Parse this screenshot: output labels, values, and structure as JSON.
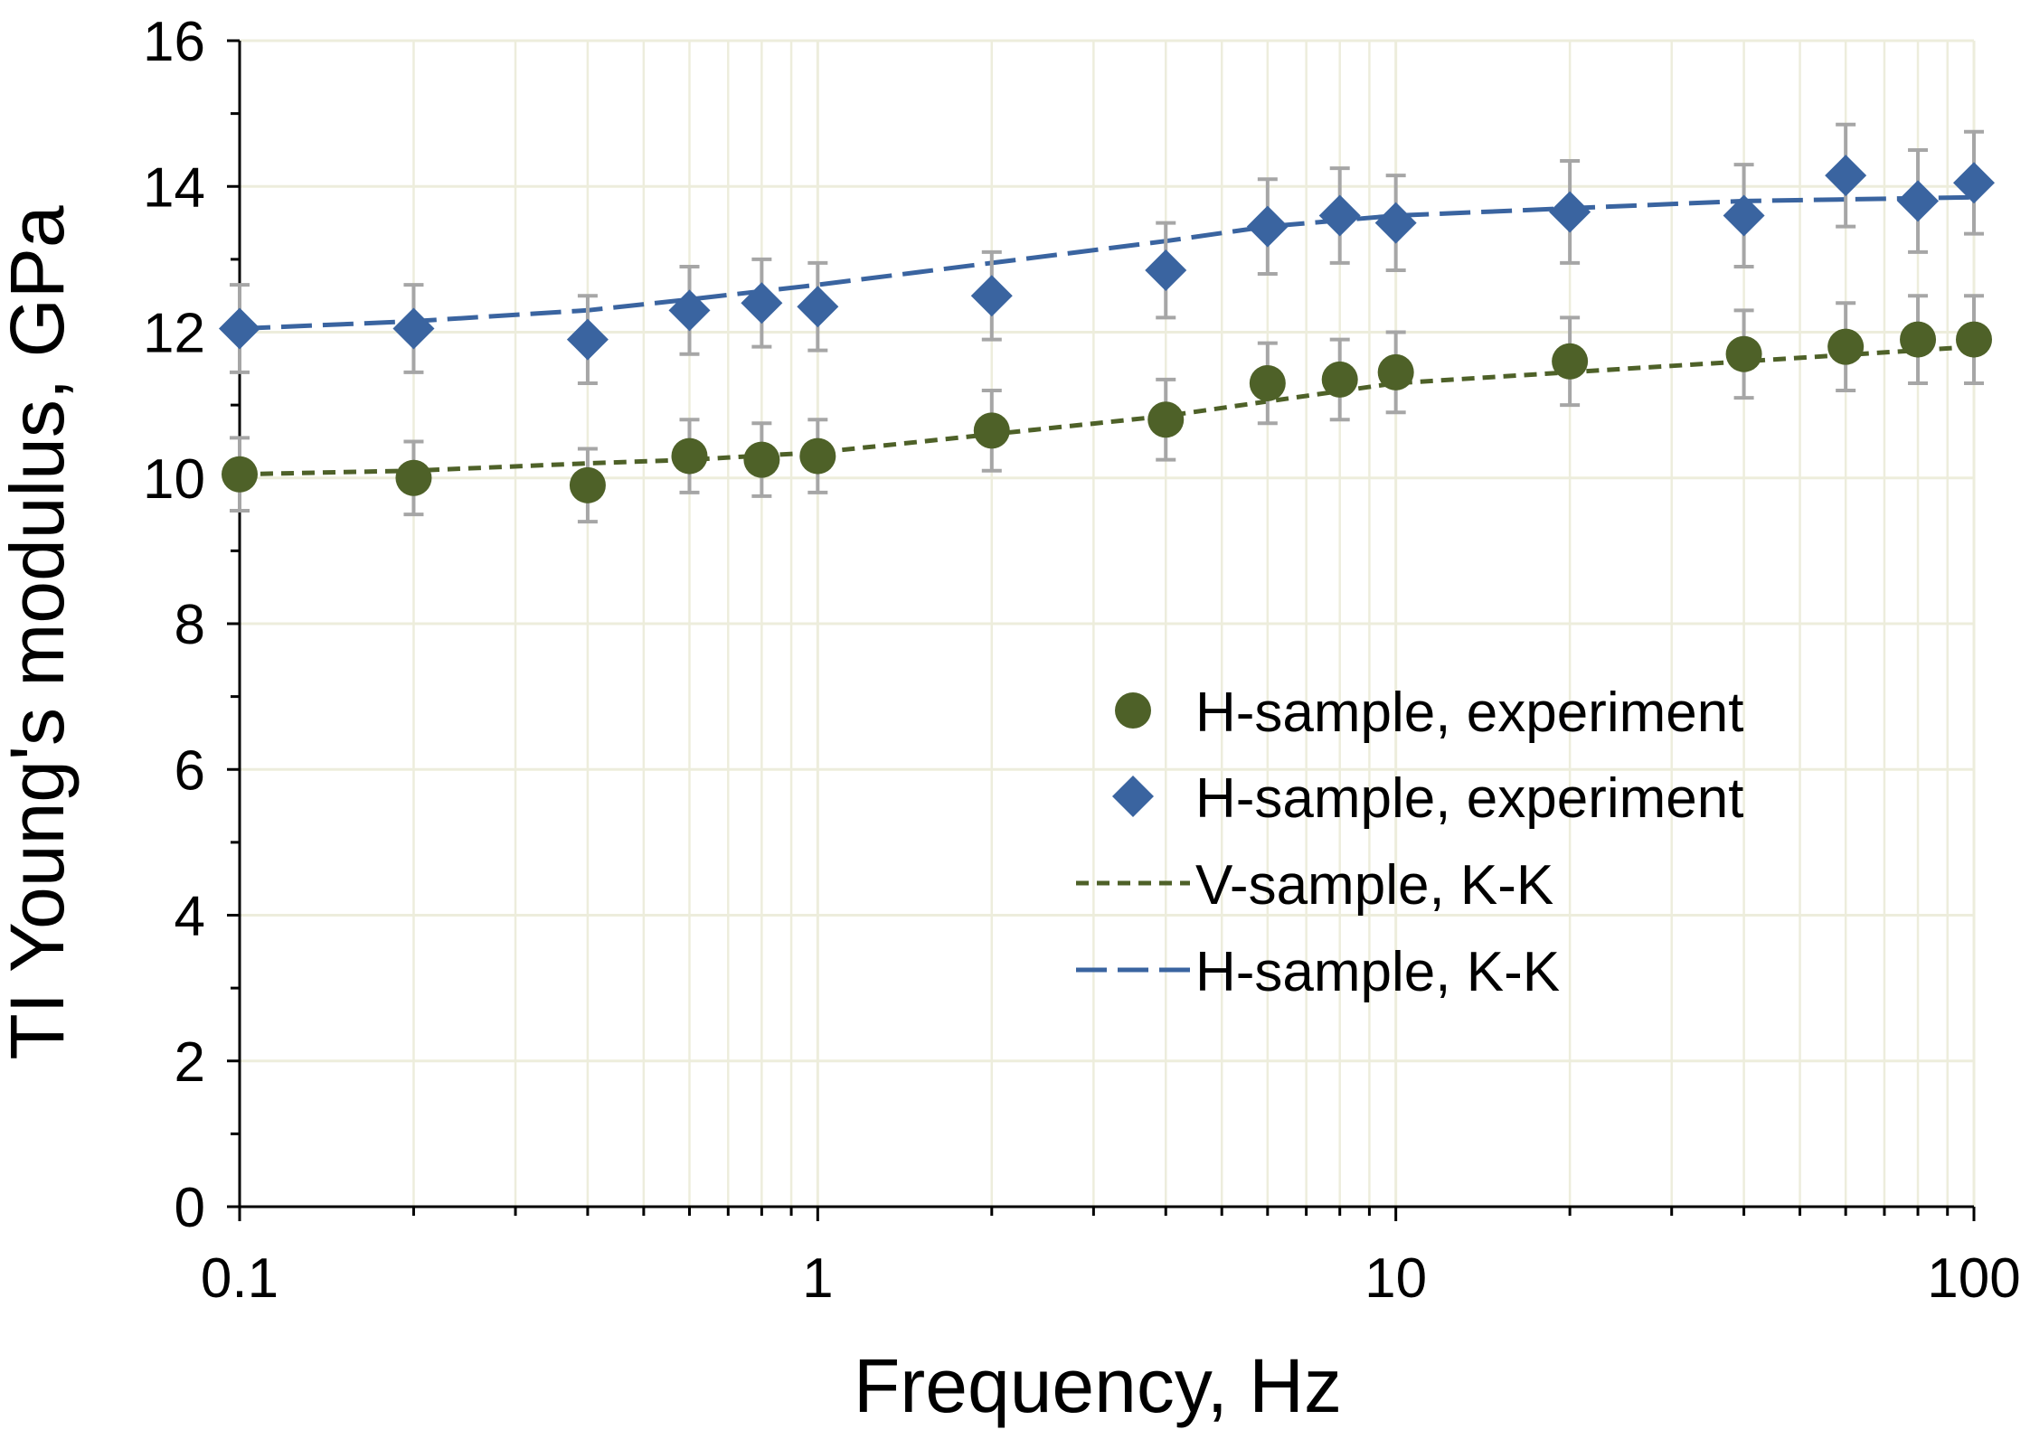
{
  "chart_data": {
    "type": "scatter",
    "title": "",
    "xlabel": "Frequency, Hz",
    "ylabel": "TI Young's modulus, GPa",
    "x_scale": "log",
    "xlim": [
      0.1,
      100
    ],
    "ylim": [
      0,
      16
    ],
    "grid": true,
    "x_ticks": [
      0.1,
      1,
      10,
      100
    ],
    "x_tick_labels": [
      "0.1",
      "1",
      "10",
      "100"
    ],
    "y_ticks": [
      0,
      2,
      4,
      6,
      8,
      10,
      12,
      14,
      16
    ],
    "y_tick_labels": [
      "0",
      "2",
      "4",
      "6",
      "8",
      "10",
      "12",
      "14",
      "16"
    ],
    "legend_position": "center-right",
    "colors": {
      "green": "#4e6128",
      "blue": "#3a64a0",
      "errorbar": "#a6a6a6",
      "grid": "#ededdc"
    },
    "series": [
      {
        "name": "H-sample, experiment",
        "kind": "points",
        "marker": "circle",
        "color": "#4e6128",
        "x": [
          0.1,
          0.2,
          0.4,
          0.6,
          0.8,
          1,
          2,
          4,
          6,
          8,
          10,
          20,
          40,
          60,
          80,
          100
        ],
        "y": [
          10.05,
          10.0,
          9.9,
          10.3,
          10.25,
          10.3,
          10.65,
          10.8,
          11.3,
          11.35,
          11.45,
          11.6,
          11.7,
          11.8,
          11.9,
          11.9
        ],
        "error": [
          0.5,
          0.5,
          0.5,
          0.5,
          0.5,
          0.5,
          0.55,
          0.55,
          0.55,
          0.55,
          0.55,
          0.6,
          0.6,
          0.6,
          0.6,
          0.6
        ]
      },
      {
        "name": "H-sample, experiment",
        "kind": "points",
        "marker": "diamond",
        "color": "#3a64a0",
        "x": [
          0.1,
          0.2,
          0.4,
          0.6,
          0.8,
          1,
          2,
          4,
          6,
          8,
          10,
          20,
          40,
          60,
          80,
          100
        ],
        "y": [
          12.05,
          12.05,
          11.9,
          12.3,
          12.4,
          12.35,
          12.5,
          12.85,
          13.45,
          13.6,
          13.5,
          13.65,
          13.6,
          14.15,
          13.8,
          14.05
        ],
        "error": [
          0.6,
          0.6,
          0.6,
          0.6,
          0.6,
          0.6,
          0.6,
          0.65,
          0.65,
          0.65,
          0.65,
          0.7,
          0.7,
          0.7,
          0.7,
          0.7
        ]
      },
      {
        "name": "V-sample, K-K",
        "kind": "line",
        "dash": "short",
        "color": "#4e6128",
        "x": [
          0.1,
          0.2,
          0.4,
          0.6,
          1,
          2,
          4,
          6,
          10,
          20,
          40,
          100
        ],
        "y": [
          10.05,
          10.1,
          10.2,
          10.25,
          10.35,
          10.6,
          10.85,
          11.05,
          11.3,
          11.45,
          11.6,
          11.8
        ]
      },
      {
        "name": "H-sample, K-K",
        "kind": "line",
        "dash": "long",
        "color": "#3a64a0",
        "x": [
          0.1,
          0.2,
          0.4,
          0.6,
          1,
          2,
          4,
          6,
          10,
          20,
          40,
          100
        ],
        "y": [
          12.05,
          12.15,
          12.3,
          12.45,
          12.65,
          12.95,
          13.25,
          13.45,
          13.6,
          13.7,
          13.8,
          13.85
        ]
      }
    ]
  }
}
